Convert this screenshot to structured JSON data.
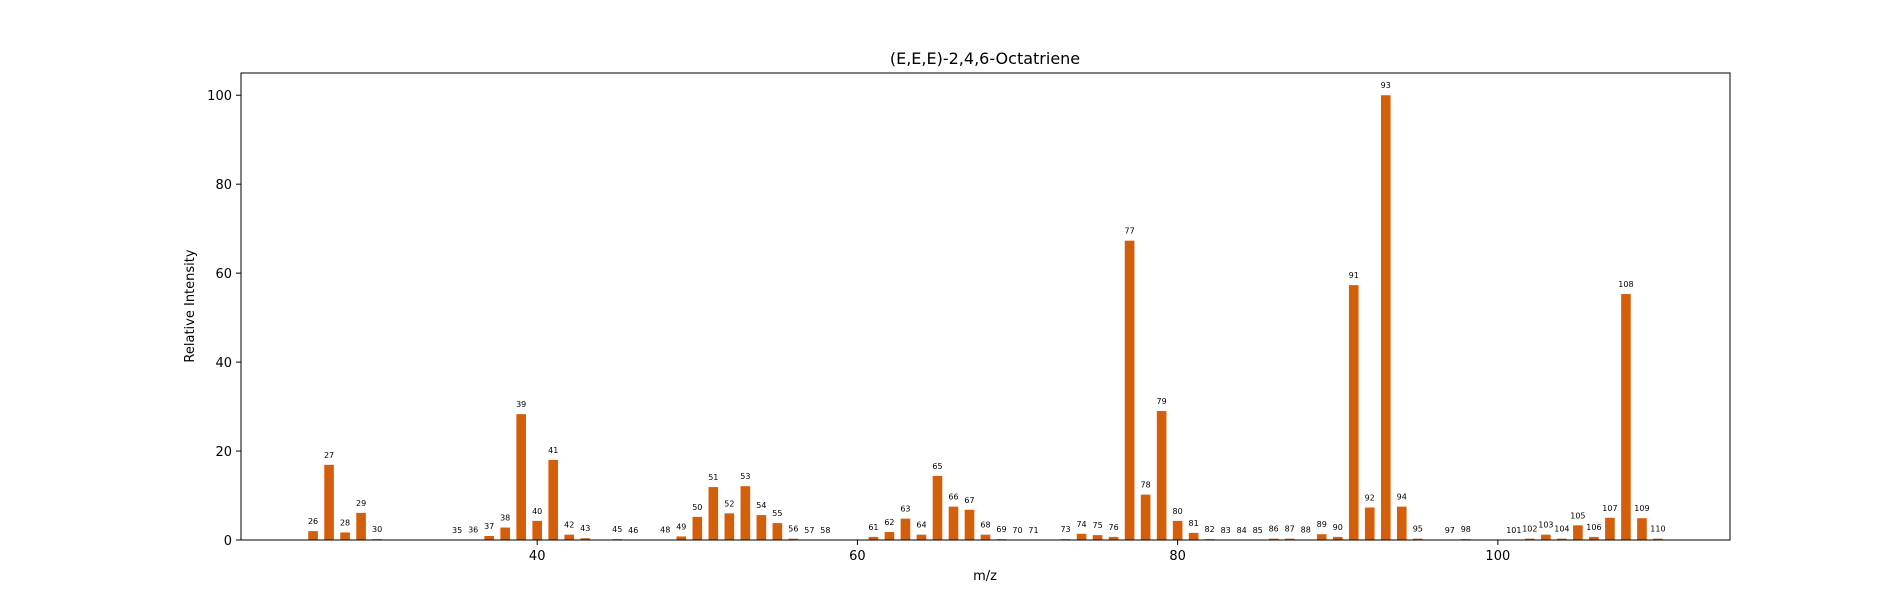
{
  "chart_data": {
    "type": "bar",
    "title": "(E,E,E)-2,4,6-Octatriene",
    "xlabel": "m/z",
    "ylabel": "Relative Intensity",
    "xlim": [
      21.5,
      114.5
    ],
    "ylim": [
      0,
      105
    ],
    "xticks": [
      40,
      60,
      80,
      100
    ],
    "yticks": [
      0,
      20,
      40,
      60,
      80,
      100
    ],
    "grid": false,
    "bar_color": "#d45f0a",
    "x": [
      26,
      27,
      28,
      29,
      30,
      35,
      36,
      37,
      38,
      39,
      40,
      41,
      42,
      43,
      45,
      46,
      48,
      49,
      50,
      51,
      52,
      53,
      54,
      55,
      56,
      57,
      58,
      61,
      62,
      63,
      64,
      65,
      66,
      67,
      68,
      69,
      70,
      71,
      73,
      74,
      75,
      76,
      77,
      78,
      79,
      80,
      81,
      82,
      83,
      84,
      85,
      86,
      87,
      88,
      89,
      90,
      91,
      92,
      93,
      94,
      95,
      97,
      98,
      101,
      102,
      103,
      104,
      105,
      106,
      107,
      108,
      109,
      110
    ],
    "values": [
      2.0,
      16.9,
      1.7,
      6.1,
      0.2,
      0.05,
      0.1,
      0.9,
      2.8,
      28.3,
      4.3,
      18.0,
      1.2,
      0.4,
      0.2,
      0.05,
      0.1,
      0.8,
      5.2,
      11.9,
      6.0,
      12.1,
      5.6,
      3.8,
      0.3,
      0.05,
      0.05,
      0.7,
      1.8,
      4.8,
      1.2,
      14.4,
      7.5,
      6.8,
      1.2,
      0.2,
      0.05,
      0.05,
      0.2,
      1.4,
      1.1,
      0.7,
      67.3,
      10.2,
      29.0,
      4.3,
      1.6,
      0.2,
      0.05,
      0.05,
      0.05,
      0.3,
      0.3,
      0.1,
      1.3,
      0.7,
      57.3,
      7.3,
      100.0,
      7.5,
      0.3,
      0.05,
      0.2,
      0.05,
      0.3,
      1.2,
      0.3,
      3.3,
      0.7,
      5.0,
      55.3,
      4.9,
      0.3
    ]
  }
}
